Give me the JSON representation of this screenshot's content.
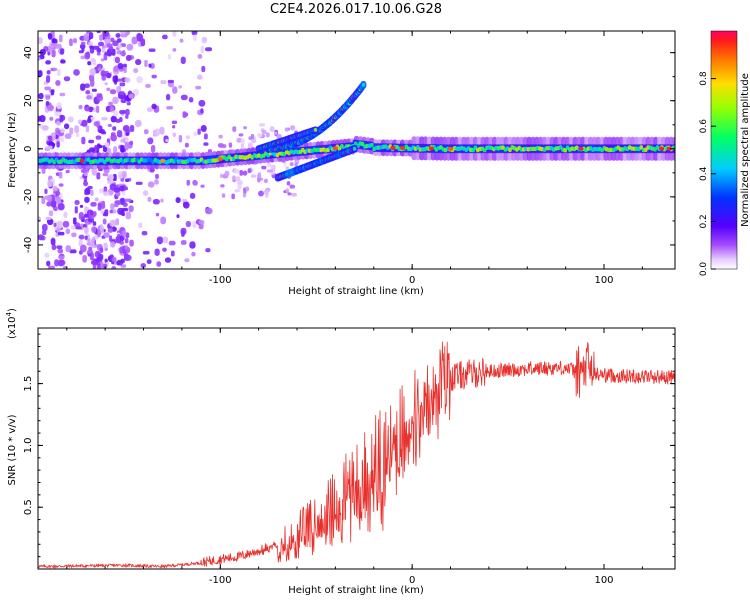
{
  "title": "C2E4.2026.017.10.06.G28",
  "colors": {
    "snr_line": "#e8302c",
    "axis": "#000000",
    "background": "#ffffff"
  },
  "chart_data": [
    {
      "type": "heatmap",
      "title": "C2E4.2026.017.10.06.G28",
      "xlabel": "Height of straight line (km)",
      "ylabel": "Frequency (Hz)",
      "xlim": [
        -195,
        137
      ],
      "ylim": [
        -50,
        49
      ],
      "xticks": [
        -100,
        0,
        100
      ],
      "xtick_labels": [
        "-100",
        "0",
        "100"
      ],
      "yticks": [
        -40,
        -20,
        0,
        20,
        40
      ],
      "ytick_labels": [
        "-40",
        "-20",
        "0",
        "20",
        "40"
      ],
      "colorbar": {
        "label": "Normalized spectral amplitude",
        "range": [
          0,
          1
        ],
        "ticks": [
          0.0,
          0.2,
          0.4,
          0.6,
          0.8
        ],
        "tick_labels": [
          "0.0",
          "0.2",
          "0.4",
          "0.6",
          "0.8"
        ],
        "colormap": "rainbow (white-violet to red)"
      },
      "features": [
        {
          "name": "main carrier line",
          "x_range": [
            -195,
            137
          ],
          "freq_hz": "approx -5 rising to 0 near x=-30, then ~0",
          "amplitude": "high"
        },
        {
          "name": "upper diverging branch",
          "x_range": [
            -75,
            -25
          ],
          "freq_hz": "approx 0 to 27",
          "amplitude": "medium"
        },
        {
          "name": "lower diverging branch",
          "x_range": [
            -70,
            -30
          ],
          "freq_hz": "approx -12 to 0",
          "amplitude": "medium"
        },
        {
          "name": "scattered low-amplitude noise",
          "x_range": [
            -195,
            -105
          ],
          "freq_hz": "-50 to 49",
          "amplitude": "low"
        }
      ]
    },
    {
      "type": "line",
      "xlabel": "Height of straight line (km)",
      "ylabel": "SNR (10 * v/v)",
      "y_scale_label": "(x10",
      "y_scale_exponent": "4",
      "xlim": [
        -195,
        137
      ],
      "ylim": [
        0,
        1.95
      ],
      "xticks": [
        -100,
        0,
        100
      ],
      "xtick_labels": [
        "-100",
        "0",
        "100"
      ],
      "yticks": [
        0.5,
        1.0,
        1.5
      ],
      "ytick_labels": [
        "0.5",
        "1.0",
        "1.5"
      ],
      "series": [
        {
          "name": "SNR",
          "x": [
            -195,
            -150,
            -130,
            -110,
            -100,
            -90,
            -80,
            -70,
            -60,
            -50,
            -40,
            -30,
            -20,
            -15,
            -10,
            -5,
            0,
            5,
            10,
            15,
            20,
            30,
            40,
            60,
            80,
            88,
            92,
            95,
            100,
            110,
            120,
            137
          ],
          "y": [
            0.02,
            0.03,
            0.02,
            0.05,
            0.08,
            0.1,
            0.15,
            0.22,
            0.3,
            0.4,
            0.55,
            0.7,
            0.85,
            0.95,
            1.05,
            1.15,
            1.25,
            1.4,
            1.48,
            1.52,
            1.55,
            1.58,
            1.6,
            1.62,
            1.63,
            1.58,
            1.65,
            1.58,
            1.57,
            1.56,
            1.56,
            1.55
          ]
        }
      ]
    }
  ]
}
